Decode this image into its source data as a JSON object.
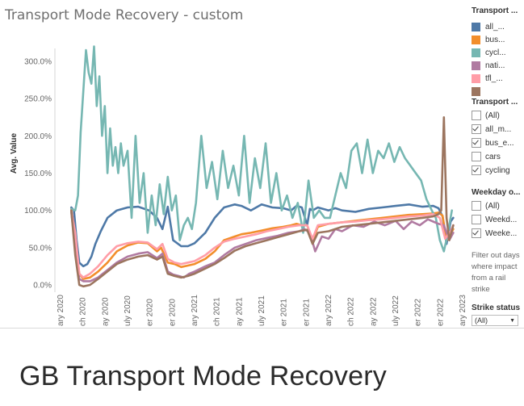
{
  "heading": "GB Transport Mode Recovery",
  "sidebar": {
    "legend_title": "Transport ...",
    "legend": [
      {
        "label": "all_...",
        "color": "#4e79a7"
      },
      {
        "label": "bus...",
        "color": "#f28e2b"
      },
      {
        "label": "cycl...",
        "color": "#76b7b2"
      },
      {
        "label": "nati...",
        "color": "#b07aa1"
      },
      {
        "label": "tfl_...",
        "color": "#ff9da7"
      },
      {
        "label": "",
        "color": "#9c755f"
      }
    ],
    "filter1_title": "Transport ...",
    "filter1": [
      {
        "label": "(All)",
        "checked": false
      },
      {
        "label": "all_m...",
        "checked": true
      },
      {
        "label": "bus_e...",
        "checked": true
      },
      {
        "label": "cars",
        "checked": false
      },
      {
        "label": "cycling",
        "checked": true
      }
    ],
    "filter2_title": "Weekday o...",
    "filter2": [
      {
        "label": "(All)",
        "checked": false
      },
      {
        "label": "Weekd...",
        "checked": false
      },
      {
        "label": "Weeke...",
        "checked": true
      }
    ],
    "note": "Filter out days where impact from a rail strike",
    "strike_title": "Strike status",
    "strike_value": "(All)"
  },
  "chart_data": {
    "type": "line",
    "title": "Transport Mode Recovery - custom",
    "ylabel": "Avg. Value",
    "xlabel": "",
    "ylim": [
      0,
      320
    ],
    "y_ticks": [
      0,
      50,
      100,
      150,
      200,
      250,
      300
    ],
    "y_tick_labels": [
      "0.0%",
      "50.0%",
      "100.0%",
      "150.0%",
      "200.0%",
      "250.0%",
      "300.0%"
    ],
    "x_tick_labels": [
      "ary 2020",
      "ch 2020",
      "ay 2020",
      "uly 2020",
      "er 2020",
      "er 2020",
      "ary 2021",
      "ch 2021",
      "ay 2021",
      "uly 2021",
      "er 2021",
      "er 2021",
      "ary 2022",
      "ch 2022",
      "ay 2022",
      "uly 2022",
      "er 2022",
      "er 2022",
      "ary 2023"
    ],
    "x_ticks": [
      2020.0,
      2020.167,
      2020.333,
      2020.5,
      2020.667,
      2020.833,
      2021.0,
      2021.167,
      2021.333,
      2021.5,
      2021.667,
      2021.833,
      2022.0,
      2022.167,
      2022.333,
      2022.5,
      2022.667,
      2022.833,
      2023.0
    ],
    "xlim": [
      2019.97,
      2023.03
    ],
    "legend_position": "right",
    "grid": false,
    "series": [
      {
        "name": "all_...",
        "color": "#4e79a7",
        "x": [
          2020.08,
          2020.1,
          2020.12,
          2020.14,
          2020.17,
          2020.2,
          2020.23,
          2020.26,
          2020.3,
          2020.35,
          2020.42,
          2020.5,
          2020.58,
          2020.66,
          2020.72,
          2020.76,
          2020.8,
          2020.84,
          2020.9,
          2020.95,
          2021.0,
          2021.08,
          2021.15,
          2021.22,
          2021.3,
          2021.35,
          2021.42,
          2021.5,
          2021.58,
          2021.66,
          2021.72,
          2021.76,
          2021.8,
          2021.84,
          2021.86,
          2021.88,
          2021.92,
          2022.0,
          2022.05,
          2022.1,
          2022.2,
          2022.3,
          2022.4,
          2022.5,
          2022.6,
          2022.7,
          2022.78,
          2022.82,
          2022.85,
          2022.88,
          2022.91,
          2022.93
        ],
        "y": [
          104,
          100,
          60,
          30,
          25,
          28,
          38,
          55,
          72,
          90,
          100,
          104,
          105,
          100,
          90,
          75,
          105,
          60,
          52,
          52,
          56,
          70,
          90,
          104,
          108,
          106,
          100,
          108,
          104,
          103,
          100,
          106,
          104,
          80,
          102,
          100,
          104,
          100,
          103,
          100,
          98,
          102,
          104,
          106,
          108,
          105,
          106,
          103,
          92,
          55,
          85,
          90
        ]
      },
      {
        "name": "bus...",
        "color": "#f28e2b",
        "x": [
          2020.08,
          2020.11,
          2020.14,
          2020.17,
          2020.22,
          2020.28,
          2020.35,
          2020.42,
          2020.5,
          2020.58,
          2020.65,
          2020.72,
          2020.75,
          2020.8,
          2020.85,
          2020.9,
          2020.95,
          2021.0,
          2021.08,
          2021.15,
          2021.22,
          2021.3,
          2021.35,
          2021.42,
          2021.5,
          2021.58,
          2021.66,
          2021.72,
          2021.76,
          2021.8,
          2021.84,
          2021.88,
          2021.92,
          2022.0,
          2022.1,
          2022.2,
          2022.3,
          2022.4,
          2022.5,
          2022.6,
          2022.7,
          2022.78,
          2022.82,
          2022.85,
          2022.88,
          2022.91,
          2022.93
        ],
        "y": [
          102,
          60,
          15,
          8,
          10,
          18,
          30,
          45,
          53,
          57,
          56,
          45,
          50,
          30,
          28,
          24,
          26,
          28,
          35,
          45,
          60,
          65,
          68,
          70,
          73,
          76,
          78,
          80,
          82,
          80,
          80,
          60,
          78,
          82,
          84,
          86,
          88,
          90,
          92,
          94,
          95,
          96,
          97,
          93,
          60,
          68,
          75
        ]
      },
      {
        "name": "cycl...",
        "color": "#76b7b2",
        "x": [
          2020.08,
          2020.11,
          2020.13,
          2020.15,
          2020.17,
          2020.19,
          2020.21,
          2020.23,
          2020.25,
          2020.27,
          2020.29,
          2020.31,
          2020.33,
          2020.35,
          2020.37,
          2020.39,
          2020.41,
          2020.43,
          2020.45,
          2020.47,
          2020.5,
          2020.53,
          2020.56,
          2020.59,
          2020.62,
          2020.65,
          2020.68,
          2020.71,
          2020.74,
          2020.77,
          2020.8,
          2020.83,
          2020.86,
          2020.89,
          2020.92,
          2020.95,
          2020.98,
          2021.01,
          2021.05,
          2021.09,
          2021.13,
          2021.17,
          2021.21,
          2021.25,
          2021.29,
          2021.33,
          2021.37,
          2021.41,
          2021.45,
          2021.49,
          2021.53,
          2021.57,
          2021.61,
          2021.65,
          2021.69,
          2021.73,
          2021.77,
          2021.81,
          2021.85,
          2021.89,
          2021.93,
          2021.97,
          2022.01,
          2022.05,
          2022.09,
          2022.13,
          2022.17,
          2022.21,
          2022.25,
          2022.29,
          2022.33,
          2022.37,
          2022.41,
          2022.45,
          2022.49,
          2022.53,
          2022.57,
          2022.61,
          2022.65,
          2022.69,
          2022.73,
          2022.77,
          2022.8,
          2022.83,
          2022.86,
          2022.89,
          2022.92
        ],
        "y": [
          102,
          100,
          120,
          205,
          260,
          315,
          285,
          270,
          320,
          240,
          280,
          200,
          240,
          150,
          210,
          160,
          185,
          150,
          190,
          160,
          180,
          90,
          200,
          110,
          150,
          70,
          120,
          80,
          135,
          95,
          145,
          100,
          120,
          60,
          80,
          90,
          75,
          110,
          200,
          130,
          165,
          115,
          180,
          130,
          160,
          120,
          200,
          110,
          170,
          130,
          190,
          110,
          150,
          100,
          120,
          90,
          110,
          70,
          140,
          90,
          100,
          90,
          90,
          120,
          150,
          130,
          180,
          190,
          150,
          195,
          150,
          180,
          170,
          190,
          165,
          185,
          170,
          160,
          150,
          140,
          115,
          100,
          90,
          60,
          45,
          70,
          100
        ]
      },
      {
        "name": "nati...",
        "color": "#b07aa1",
        "x": [
          2020.08,
          2020.11,
          2020.14,
          2020.17,
          2020.22,
          2020.28,
          2020.35,
          2020.42,
          2020.5,
          2020.58,
          2020.65,
          2020.72,
          2020.76,
          2020.8,
          2020.84,
          2020.88,
          2020.92,
          2020.96,
          2021.0,
          2021.08,
          2021.15,
          2021.22,
          2021.3,
          2021.38,
          2021.46,
          2021.54,
          2021.62,
          2021.7,
          2021.78,
          2021.82,
          2021.86,
          2021.9,
          2021.95,
          2022.0,
          2022.05,
          2022.1,
          2022.18,
          2022.26,
          2022.34,
          2022.42,
          2022.5,
          2022.56,
          2022.62,
          2022.68,
          2022.74,
          2022.78,
          2022.82,
          2022.86,
          2022.9,
          2022.93
        ],
        "y": [
          98,
          50,
          8,
          5,
          5,
          10,
          20,
          30,
          38,
          42,
          44,
          36,
          42,
          18,
          14,
          12,
          10,
          15,
          18,
          25,
          30,
          40,
          50,
          55,
          60,
          63,
          66,
          70,
          72,
          75,
          70,
          45,
          65,
          62,
          75,
          72,
          80,
          78,
          85,
          80,
          86,
          75,
          85,
          80,
          88,
          85,
          82,
          80,
          60,
          70
        ]
      },
      {
        "name": "tfl_...",
        "color": "#ff9da7",
        "x": [
          2020.08,
          2020.11,
          2020.14,
          2020.17,
          2020.22,
          2020.28,
          2020.35,
          2020.42,
          2020.5,
          2020.58,
          2020.65,
          2020.72,
          2020.76,
          2020.8,
          2020.85,
          2020.9,
          2020.95,
          2021.0,
          2021.08,
          2021.15,
          2021.22,
          2021.3,
          2021.38,
          2021.46,
          2021.54,
          2021.62,
          2021.7,
          2021.78,
          2021.84,
          2021.88,
          2021.92,
          2022.0,
          2022.1,
          2022.2,
          2022.3,
          2022.4,
          2022.5,
          2022.6,
          2022.7,
          2022.78,
          2022.83,
          2022.87,
          2022.91,
          2022.93
        ],
        "y": [
          100,
          70,
          15,
          10,
          15,
          25,
          40,
          52,
          56,
          58,
          57,
          48,
          55,
          35,
          30,
          28,
          30,
          32,
          40,
          50,
          58,
          62,
          65,
          68,
          72,
          75,
          78,
          80,
          80,
          62,
          80,
          82,
          84,
          85,
          87,
          88,
          90,
          92,
          93,
          95,
          90,
          62,
          72,
          80
        ]
      },
      {
        "name": "",
        "color": "#9c755f",
        "x": [
          2020.08,
          2020.11,
          2020.14,
          2020.17,
          2020.22,
          2020.28,
          2020.35,
          2020.42,
          2020.5,
          2020.58,
          2020.65,
          2020.72,
          2020.76,
          2020.8,
          2020.85,
          2020.9,
          2020.95,
          2021.0,
          2021.08,
          2021.15,
          2021.22,
          2021.3,
          2021.38,
          2021.46,
          2021.54,
          2021.62,
          2021.7,
          2021.78,
          2021.84,
          2021.88,
          2021.92,
          2022.0,
          2022.1,
          2022.2,
          2022.3,
          2022.4,
          2022.5,
          2022.6,
          2022.7,
          2022.78,
          2022.82,
          2022.84,
          2022.86,
          2022.88,
          2022.9,
          2022.93
        ],
        "y": [
          100,
          40,
          0,
          -2,
          0,
          8,
          18,
          28,
          34,
          38,
          40,
          34,
          38,
          15,
          12,
          10,
          12,
          15,
          22,
          28,
          36,
          46,
          52,
          56,
          60,
          64,
          68,
          72,
          74,
          55,
          70,
          72,
          78,
          80,
          82,
          84,
          86,
          88,
          90,
          92,
          95,
          100,
          225,
          90,
          60,
          80
        ]
      }
    ]
  }
}
